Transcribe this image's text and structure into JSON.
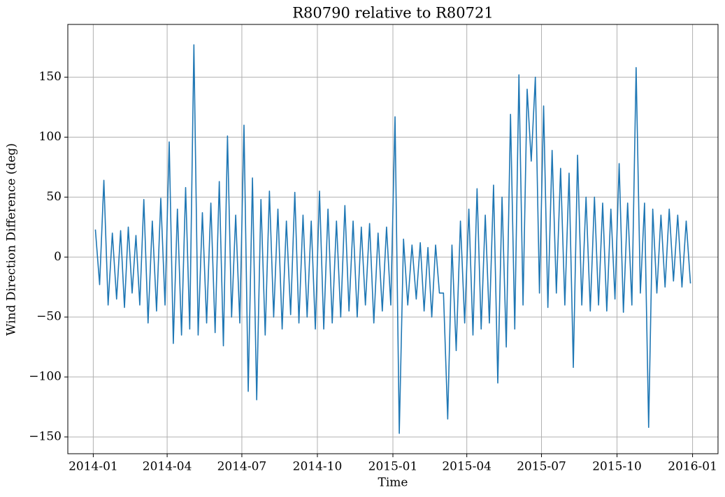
{
  "chart_data": {
    "type": "line",
    "title": "R80790 relative to R80721",
    "x_label": "Time",
    "y_label": "Wind Direction Difference (deg)",
    "x": [
      "2014-01",
      "2014-01",
      "2014-01",
      "2014-01",
      "2014-01",
      "2014-01",
      "2014-02",
      "2014-02",
      "2014-02",
      "2014-02",
      "2014-02",
      "2014-02",
      "2014-03",
      "2014-03",
      "2014-03",
      "2014-03",
      "2014-03",
      "2014-03",
      "2014-04",
      "2014-04",
      "2014-04",
      "2014-04",
      "2014-04",
      "2014-04",
      "2014-05",
      "2014-05",
      "2014-05",
      "2014-05",
      "2014-05",
      "2014-05",
      "2014-06",
      "2014-06",
      "2014-06",
      "2014-06",
      "2014-06",
      "2014-06",
      "2014-07",
      "2014-07",
      "2014-07",
      "2014-07",
      "2014-07",
      "2014-07",
      "2014-08",
      "2014-08",
      "2014-08",
      "2014-08",
      "2014-08",
      "2014-08",
      "2014-09",
      "2014-09",
      "2014-09",
      "2014-09",
      "2014-09",
      "2014-09",
      "2014-10",
      "2014-10",
      "2014-10",
      "2014-10",
      "2014-10",
      "2014-10",
      "2014-11",
      "2014-11",
      "2014-11",
      "2014-11",
      "2014-11",
      "2014-11",
      "2014-12",
      "2014-12",
      "2014-12",
      "2014-12",
      "2014-12",
      "2014-12",
      "2015-01",
      "2015-01",
      "2015-01",
      "2015-01",
      "2015-01",
      "2015-01",
      "2015-02",
      "2015-02",
      "2015-02",
      "2015-02",
      "2015-02",
      "2015-02",
      "2015-03",
      "2015-03",
      "2015-03",
      "2015-03",
      "2015-03",
      "2015-03",
      "2015-04",
      "2015-04",
      "2015-04",
      "2015-04",
      "2015-04",
      "2015-04",
      "2015-05",
      "2015-05",
      "2015-05",
      "2015-05",
      "2015-05",
      "2015-05",
      "2015-06",
      "2015-06",
      "2015-06",
      "2015-06",
      "2015-06",
      "2015-06",
      "2015-07",
      "2015-07",
      "2015-07",
      "2015-07",
      "2015-07",
      "2015-07",
      "2015-08",
      "2015-08",
      "2015-08",
      "2015-08",
      "2015-08",
      "2015-08",
      "2015-09",
      "2015-09",
      "2015-09",
      "2015-09",
      "2015-09",
      "2015-09",
      "2015-10",
      "2015-10",
      "2015-10",
      "2015-10",
      "2015-10",
      "2015-10",
      "2015-11",
      "2015-11",
      "2015-11",
      "2015-11",
      "2015-11",
      "2015-11",
      "2015-12",
      "2015-12",
      "2015-12",
      "2015-12",
      "2015-12",
      "2015-12"
    ],
    "series": [
      {
        "color": "#1f77b4",
        "values": [
          23,
          -23,
          64,
          -40,
          20,
          -35,
          22,
          -42,
          25,
          -30,
          18,
          -40,
          48,
          -55,
          30,
          -45,
          49,
          -40,
          96,
          -72,
          40,
          -65,
          58,
          -60,
          177,
          -65,
          37,
          -55,
          45,
          -63,
          63,
          -74,
          101,
          -50,
          35,
          -55,
          110,
          -112,
          66,
          -119,
          48,
          -65,
          55,
          -50,
          40,
          -60,
          30,
          -48,
          54,
          -55,
          35,
          -50,
          30,
          -60,
          55,
          -60,
          40,
          -55,
          30,
          -50,
          43,
          -45,
          30,
          -50,
          25,
          -40,
          28,
          -55,
          20,
          -45,
          25,
          -40,
          117,
          -147,
          15,
          -40,
          10,
          -35,
          12,
          -45,
          8,
          -50,
          10,
          -30,
          -30,
          -135,
          10,
          -78,
          30,
          -55,
          40,
          -65,
          57,
          -60,
          35,
          -55,
          60,
          -105,
          50,
          -75,
          119,
          -60,
          152,
          -40,
          140,
          80,
          150,
          -30,
          126,
          -42,
          89,
          -30,
          74,
          -40,
          70,
          -92,
          85,
          -40,
          50,
          -45,
          50,
          -40,
          45,
          -45,
          40,
          -35,
          78,
          -46,
          45,
          -40,
          158,
          -30,
          45,
          -142,
          40,
          -30,
          35,
          -25,
          40,
          -20,
          35,
          -25,
          30,
          -22
        ]
      }
    ],
    "xlim": [
      "2013-12",
      "2016-02"
    ],
    "xticks": [
      "2014-01",
      "2014-04",
      "2014-07",
      "2014-10",
      "2015-01",
      "2015-04",
      "2015-07",
      "2015-10",
      "2016-01"
    ],
    "ylim": [
      -164,
      194
    ],
    "yticks": [
      {
        "value": -150,
        "label": "−150"
      },
      {
        "value": -100,
        "label": "−100"
      },
      {
        "value": -50,
        "label": "−50"
      },
      0,
      50,
      100,
      150
    ],
    "grid": true
  }
}
